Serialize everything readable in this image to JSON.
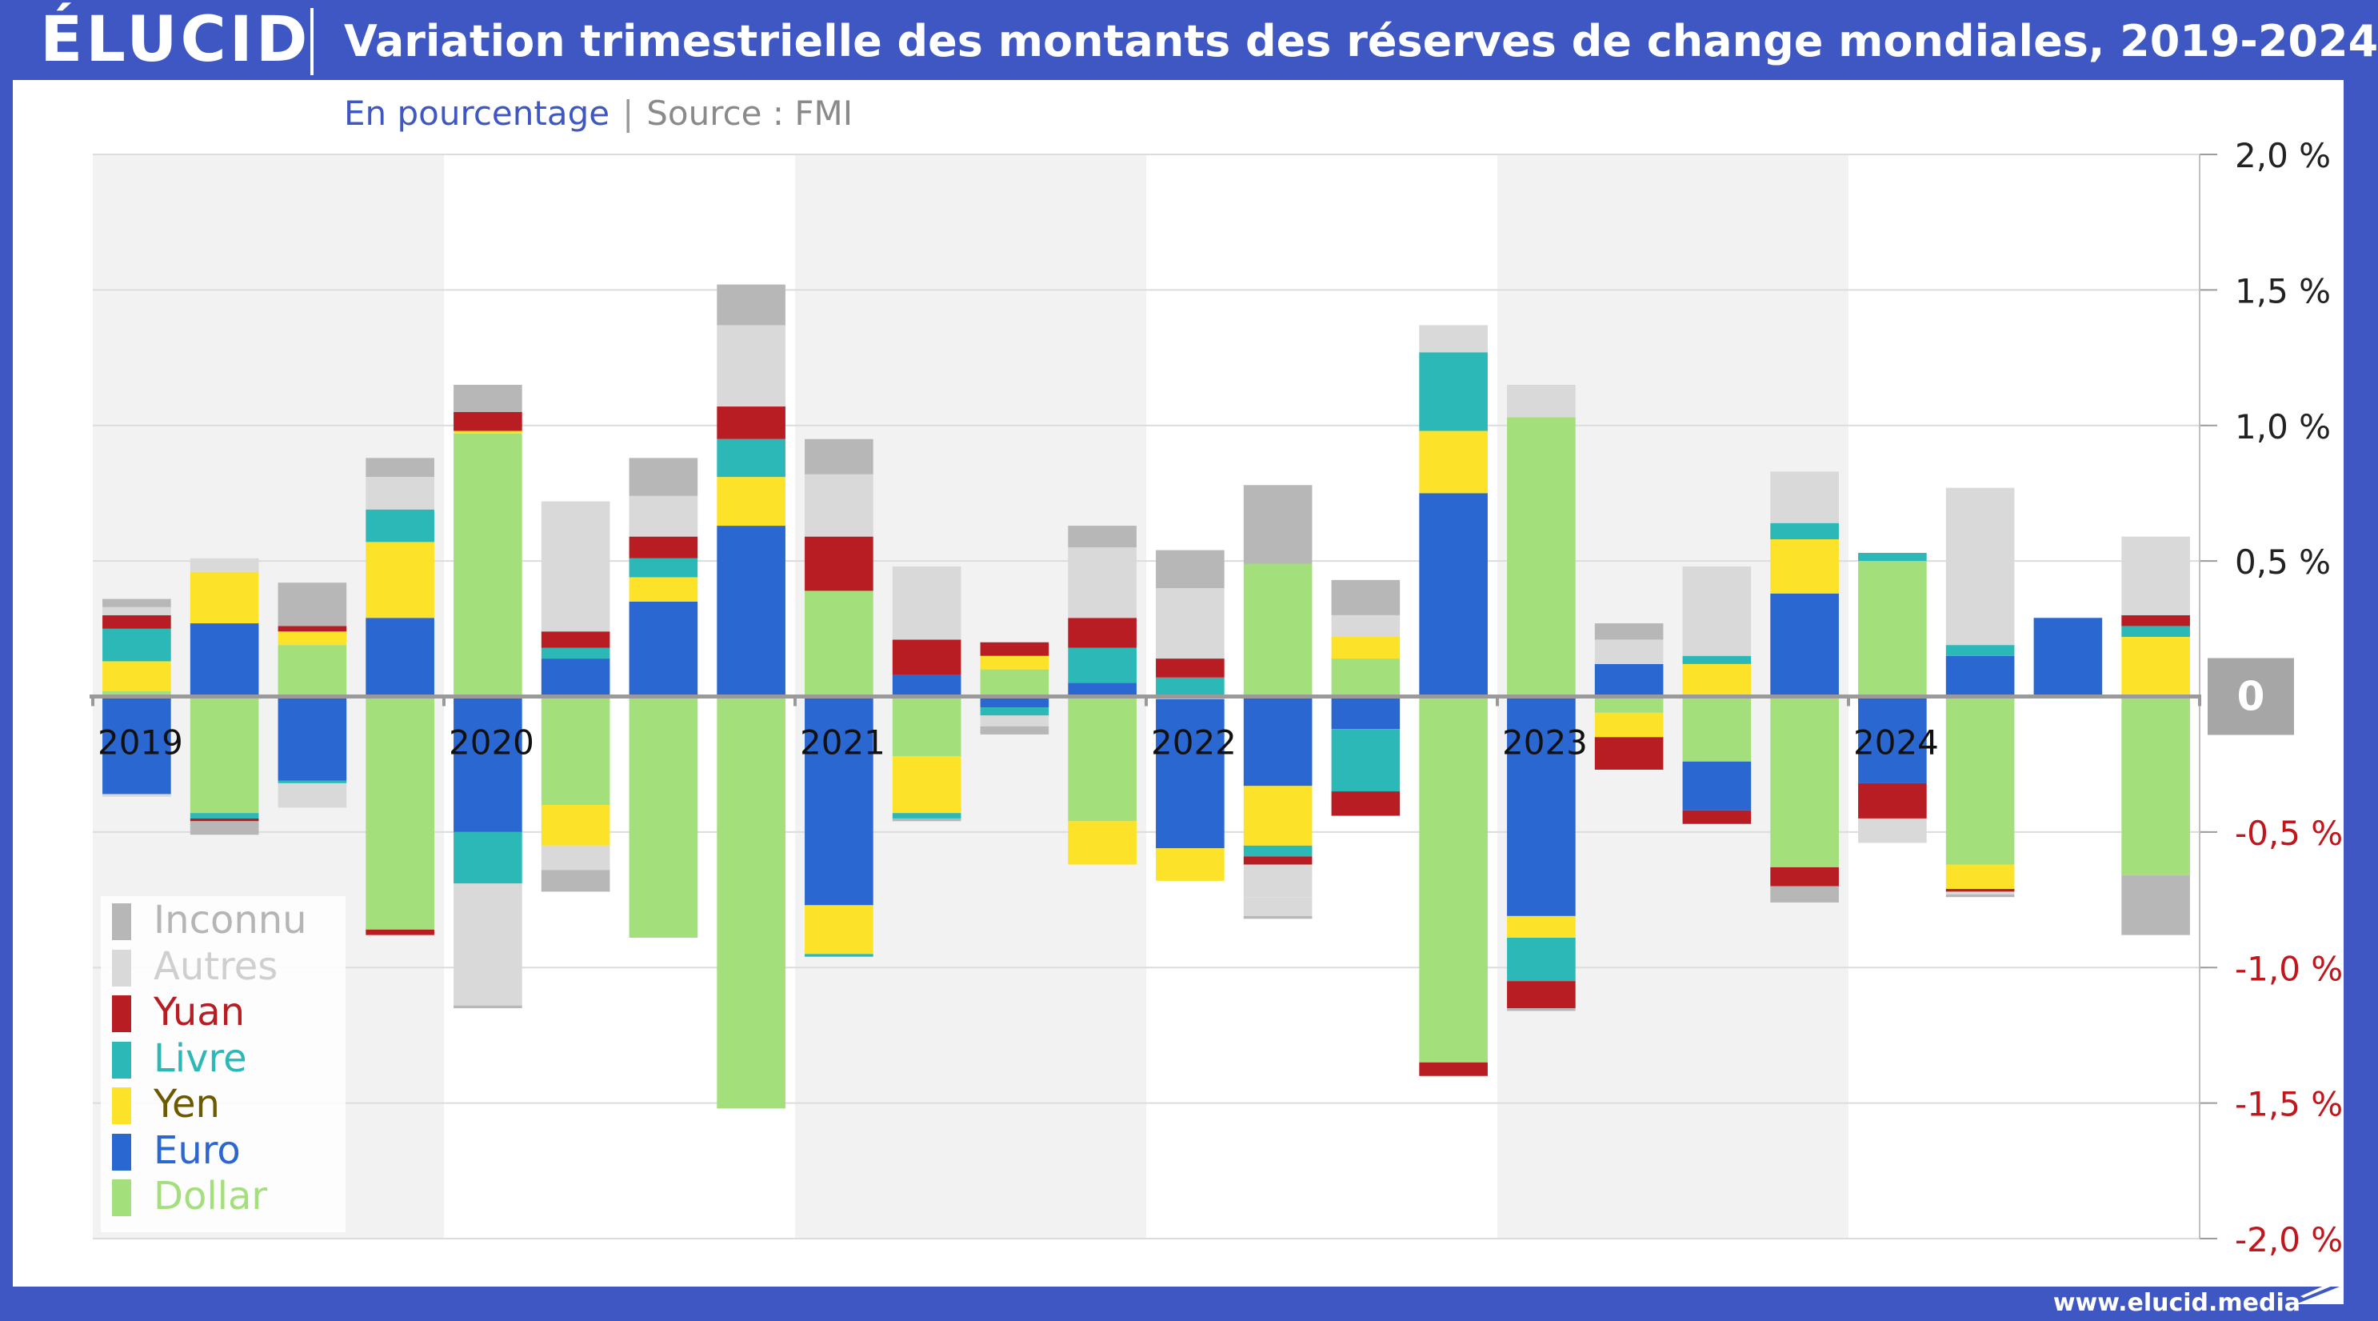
{
  "header": {
    "logo": "ÉLUCID",
    "title": "Variation trimestrielle des montants des réserves de change mondiales, 2019-2024"
  },
  "subtitle": {
    "unit": "En pourcentage",
    "separator": "|",
    "source": "Source : FMI"
  },
  "footer": {
    "url": "www.elucid.media"
  },
  "colors": {
    "header_bg": "#3f57c2",
    "Inconnu": "#b7b7b7",
    "Autres": "#d9d9d9",
    "Yuan": "#b81d24",
    "Livre": "#2bb8b6",
    "Yen": "#fde22a",
    "Euro": "#2b67d0",
    "Dollar": "#a3df7b",
    "axis_pos_text": "#222222",
    "axis_neg_text": "#c0161c",
    "zero_badge": "#a6a6a6"
  },
  "legend": [
    {
      "name": "Inconnu",
      "label_color": "#b5b5b5"
    },
    {
      "name": "Autres",
      "label_color": "#cfcfcf"
    },
    {
      "name": "Yuan",
      "label_color": "#b81d24"
    },
    {
      "name": "Livre",
      "label_color": "#2bb8b6"
    },
    {
      "name": "Yen",
      "label_color": "#6b5a00"
    },
    {
      "name": "Euro",
      "label_color": "#2b67d0"
    },
    {
      "name": "Dollar",
      "label_color": "#a3df7b"
    }
  ],
  "chart_data": {
    "type": "bar",
    "stacked": true,
    "title": "Variation trimestrielle des montants des réserves de change mondiales, 2019-2024",
    "ylabel": "En pourcentage",
    "ylim": [
      -2.0,
      2.0
    ],
    "yticks": [
      {
        "value": 2.0,
        "label": "2,0 %"
      },
      {
        "value": 1.5,
        "label": "1,5 %"
      },
      {
        "value": 1.0,
        "label": "1,0 %"
      },
      {
        "value": 0.5,
        "label": "0,5 %"
      },
      {
        "value": 0,
        "label": "0"
      },
      {
        "value": -0.5,
        "label": "-0,5 %"
      },
      {
        "value": -1.0,
        "label": "-1,0 %"
      },
      {
        "value": -1.5,
        "label": "-1,5 %"
      },
      {
        "value": -2.0,
        "label": "-2,0 %"
      }
    ],
    "year_labels": [
      "2019",
      "2020",
      "2021",
      "2022",
      "2023",
      "2024"
    ],
    "quarters_per_year": 4,
    "legend_position": "bottom-left",
    "grid": true,
    "stack_order": [
      "Dollar",
      "Euro",
      "Yen",
      "Livre",
      "Yuan",
      "Autres",
      "Inconnu"
    ],
    "series": [
      {
        "name": "Dollar",
        "values": [
          0.02,
          -0.43,
          0.19,
          -0.86,
          0.97,
          -0.4,
          -0.89,
          -1.52,
          0.39,
          -0.22,
          0.1,
          -0.46,
          -0.01,
          0.49,
          0.14,
          -1.35,
          1.03,
          -0.06,
          -0.24,
          -0.63,
          0.5,
          -0.62,
          0.0,
          -0.66
        ]
      },
      {
        "name": "Euro",
        "values": [
          -0.36,
          0.27,
          -0.31,
          0.29,
          -0.5,
          0.14,
          0.35,
          0.63,
          -0.77,
          0.08,
          -0.04,
          0.05,
          -0.55,
          -0.33,
          -0.12,
          0.75,
          -0.81,
          0.12,
          -0.18,
          0.38,
          -0.32,
          0.15,
          0.29,
          0.0
        ]
      },
      {
        "name": "Yen",
        "values": [
          0.11,
          0.19,
          0.05,
          0.28,
          0.01,
          -0.15,
          0.09,
          0.18,
          -0.18,
          -0.21,
          0.05,
          -0.16,
          -0.12,
          -0.22,
          0.08,
          0.23,
          -0.08,
          -0.09,
          0.12,
          0.2,
          0.0,
          -0.09,
          0.0,
          0.22
        ]
      },
      {
        "name": "Livre",
        "values": [
          0.12,
          -0.02,
          -0.01,
          0.12,
          -0.19,
          0.04,
          0.07,
          0.14,
          -0.01,
          -0.02,
          -0.03,
          0.13,
          0.07,
          -0.04,
          -0.23,
          0.29,
          -0.16,
          0.0,
          0.03,
          0.06,
          0.03,
          0.04,
          0.0,
          0.04
        ]
      },
      {
        "name": "Yuan",
        "values": [
          0.05,
          -0.01,
          0.02,
          -0.02,
          0.07,
          0.06,
          0.08,
          0.12,
          0.2,
          0.13,
          0.05,
          0.11,
          0.07,
          -0.03,
          -0.09,
          -0.05,
          -0.1,
          -0.12,
          -0.05,
          -0.07,
          -0.13,
          -0.01,
          0.0,
          0.04
        ]
      },
      {
        "name": "Autres",
        "values": [
          0.03,
          0.05,
          0.0,
          0.12,
          0.0,
          0.48,
          0.15,
          0.3,
          0.23,
          0.27,
          0.0,
          0.26,
          0.26,
          -0.12,
          0.08,
          0.1,
          0.12,
          0.09,
          0.33,
          0.19,
          -0.05,
          0.58,
          0.0,
          0.29
        ]
      },
      {
        "name": "Inconnu",
        "values": [
          0.03,
          -0.03,
          0.16,
          0.07,
          0.1,
          0.0,
          0.14,
          0.15,
          0.13,
          0.0,
          0.0,
          0.08,
          0.14,
          0.29,
          0.13,
          0.0,
          0.0,
          0.06,
          0.0,
          0.0,
          0.0,
          0.0,
          0.0,
          -0.22
        ]
      },
      {
        "name": "Autres (négatif)",
        "values": [
          -0.01,
          0.0,
          -0.09,
          0.0,
          -0.45,
          -0.09,
          0.0,
          0.0,
          0.0,
          0.0,
          -0.04,
          0.0,
          0.0,
          -0.07,
          0.0,
          0.0,
          0.0,
          0.0,
          0.0,
          0.0,
          -0.04,
          -0.01,
          0.0,
          0.0
        ]
      },
      {
        "name": "Inconnu (négatif)",
        "values": [
          0.0,
          -0.02,
          0.0,
          0.0,
          -0.01,
          -0.08,
          0.0,
          0.0,
          0.0,
          -0.01,
          -0.03,
          0.0,
          0.0,
          -0.01,
          0.0,
          0.0,
          -0.01,
          0.0,
          0.0,
          -0.06,
          0.0,
          -0.01,
          0.0,
          0.0
        ]
      }
    ]
  }
}
